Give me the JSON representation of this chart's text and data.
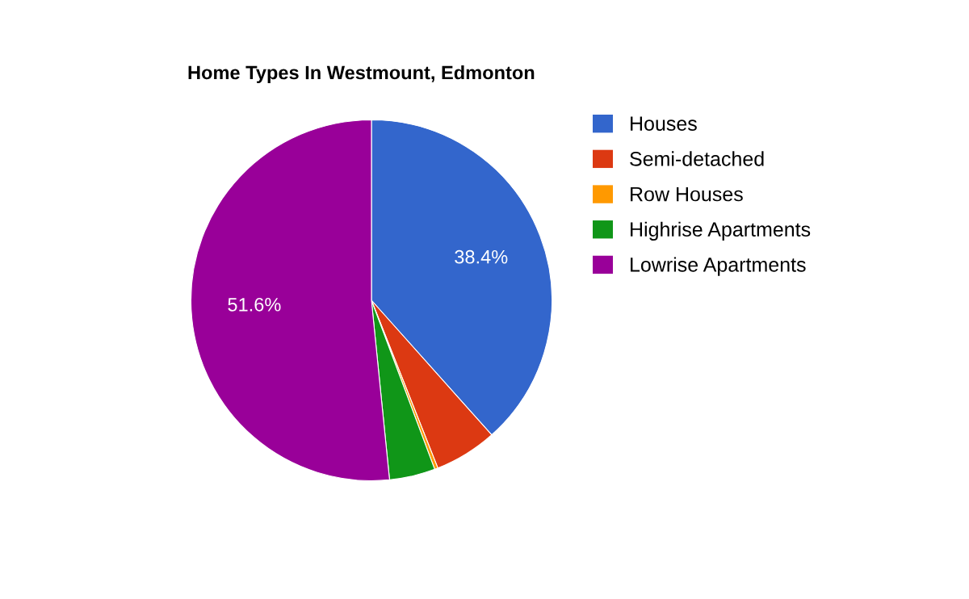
{
  "chart_data": {
    "type": "pie",
    "title": "Home Types In Westmount, Edmonton",
    "categories": [
      "Houses",
      "Semi-detached",
      "Row Houses",
      "Highrise Apartments",
      "Lowrise Apartments"
    ],
    "values": [
      38.4,
      5.6,
      0.3,
      4.1,
      51.6
    ],
    "value_labels": [
      "38.4%",
      null,
      null,
      null,
      "51.6%"
    ],
    "colors": [
      "#3366cc",
      "#dc3912",
      "#ff9900",
      "#109618",
      "#990099"
    ],
    "legend": "right"
  }
}
